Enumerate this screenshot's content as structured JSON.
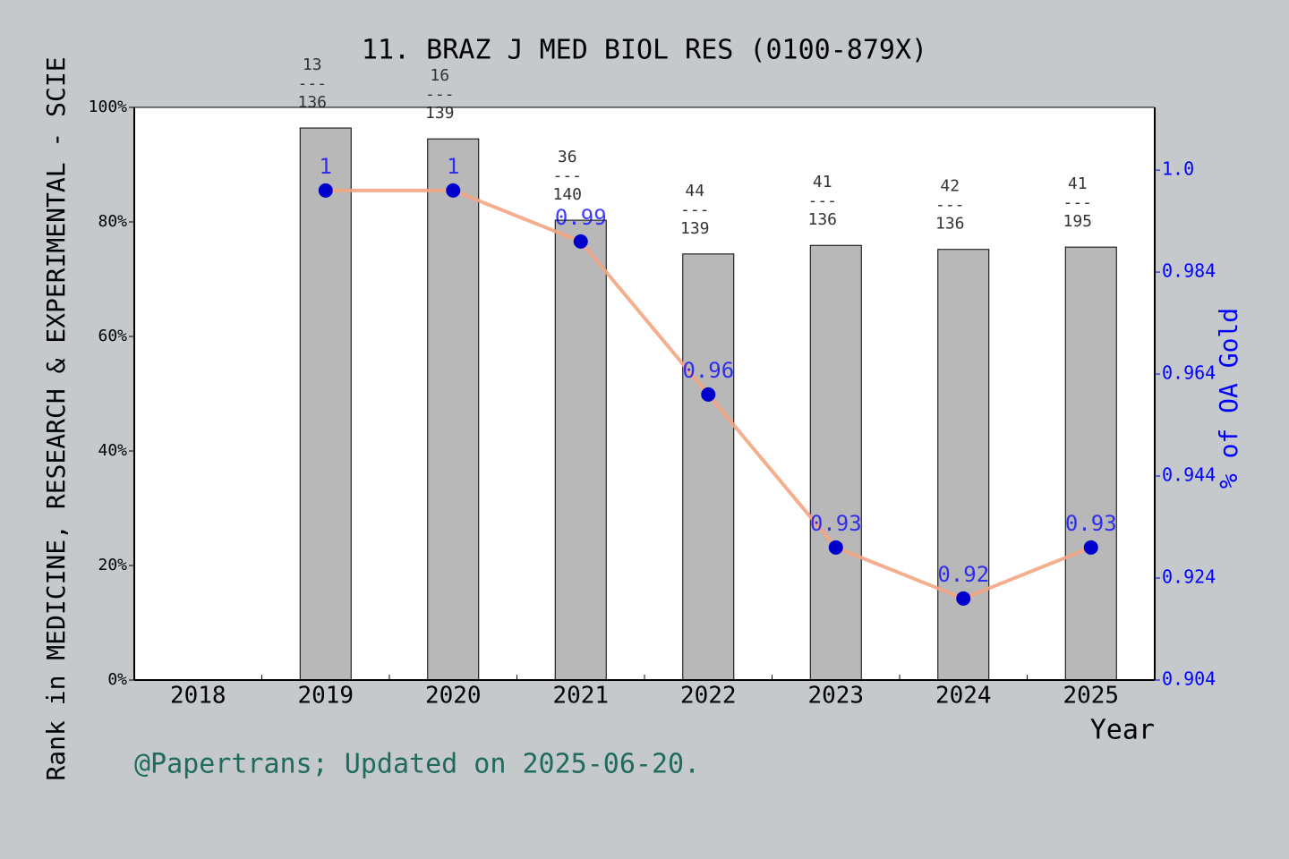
{
  "chart_data": {
    "type": "bar",
    "title": "11. BRAZ J MED BIOL RES (0100-879X)",
    "ylabel": "Rank in MEDICINE, RESEARCH & EXPERIMENTAL - SCIE",
    "y2label": "% of OA Gold",
    "xlabel": "Year",
    "footer": "@Papertrans; Updated on 2025-06-20.",
    "categories": [
      "2018",
      "2019",
      "2020",
      "2021",
      "2022",
      "2023",
      "2024",
      "2025"
    ],
    "bars": {
      "color": "#b8b8b8",
      "values": [
        null,
        96.4,
        94.5,
        80.3,
        74.4,
        75.9,
        75.2,
        75.6
      ],
      "labels": [
        null,
        [
          "13",
          "---",
          "136"
        ],
        [
          "16",
          "---",
          "139"
        ],
        [
          "36",
          "---",
          "140"
        ],
        [
          "44",
          "---",
          "139"
        ],
        [
          "41",
          "---",
          "136"
        ],
        [
          "42",
          "---",
          "136"
        ],
        [
          "41",
          "---",
          "195"
        ]
      ]
    },
    "line": {
      "color": "#f4a582",
      "marker_color": "#0000cc",
      "axis": "y2",
      "values": [
        null,
        1,
        1,
        0.99,
        0.96,
        0.93,
        0.92,
        0.93
      ]
    },
    "ylim": [
      0,
      100
    ],
    "yticks": [
      {
        "value": 0,
        "label": "0%"
      },
      {
        "value": 20,
        "label": "20%"
      },
      {
        "value": 40,
        "label": "40%"
      },
      {
        "value": 60,
        "label": "60%"
      },
      {
        "value": 80,
        "label": "80%"
      },
      {
        "value": 100,
        "label": "100%"
      }
    ],
    "y2lim": [
      0.904,
      1.0163
    ],
    "y2ticks": [
      0.904,
      0.924,
      0.944,
      0.964,
      0.984,
      {
        "value": 1.004,
        "label": "1.0"
      }
    ],
    "y2color": "#0000ff"
  }
}
